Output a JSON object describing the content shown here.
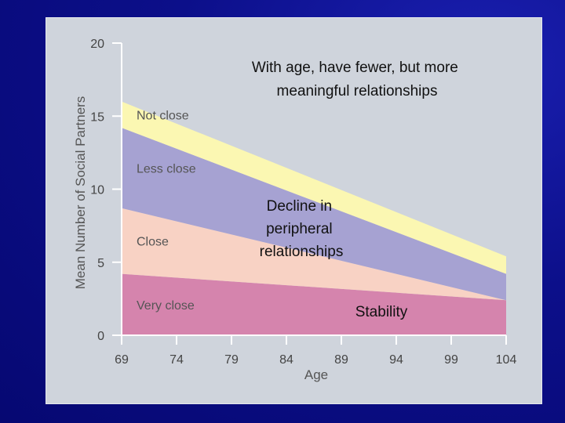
{
  "chart_data": {
    "type": "area",
    "stacked": true,
    "xlabel": "Age",
    "ylabel": "Mean Number of Social Partners",
    "x_ticks": [
      "69",
      "74",
      "79",
      "84",
      "89",
      "94",
      "99",
      "104"
    ],
    "y_ticks": [
      "0",
      "5",
      "10",
      "15",
      "20"
    ],
    "xlim": [
      69,
      104
    ],
    "ylim": [
      0,
      20
    ],
    "x": [
      69,
      104
    ],
    "series": [
      {
        "name": "Very close",
        "values": [
          4.2,
          2.4
        ],
        "color": "#d584ad"
      },
      {
        "name": "Close",
        "values": [
          4.5,
          0.0
        ],
        "color": "#f8d2c4"
      },
      {
        "name": "Less close",
        "values": [
          5.5,
          1.8
        ],
        "color": "#a6a2d2"
      },
      {
        "name": "Not close",
        "values": [
          1.8,
          1.2
        ],
        "color": "#fbf7b2"
      }
    ],
    "annotations": [
      {
        "lines": [
          "With age, have fewer, but more",
          "meaningful relationships"
        ]
      },
      {
        "lines": [
          "Decline in",
          "peripheral",
          "relationships"
        ]
      },
      {
        "lines": [
          "Stability"
        ]
      }
    ]
  }
}
